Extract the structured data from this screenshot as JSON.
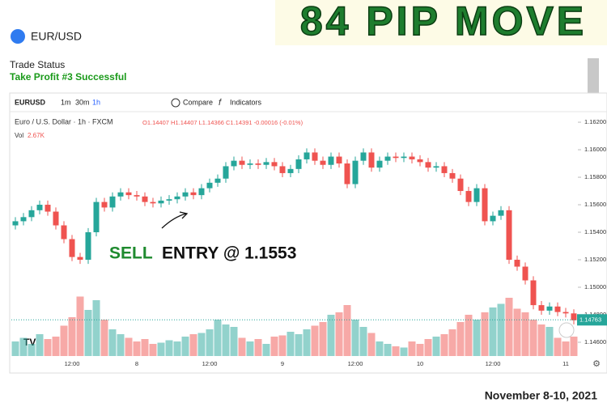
{
  "header": {
    "pair": "EUR/USD",
    "logo": "84 PIP MOVE"
  },
  "status": {
    "label": "Trade Status",
    "value": "Take Profit #3 Successful"
  },
  "toolbar": {
    "symbol": "EURUSD",
    "intervals": [
      "1m",
      "30m",
      "1h"
    ],
    "compare": "Compare",
    "indicators": "Indicators"
  },
  "chart_data": {
    "type": "candlestick",
    "title": "Euro / U.S. Dollar · 1h · FXCM",
    "ohlc_text": "O1.14407 H1.14407 L1.14366 C1.14391 -0.00016 (-0.01%)",
    "volume_label": "Vol",
    "volume_value": "2.67K",
    "up_color": "#26a69a",
    "down_color": "#ef5350",
    "categories": [
      null,
      null,
      null,
      null,
      null,
      null,
      null,
      "12:00",
      null,
      null,
      null,
      null,
      null,
      null,
      null,
      "8",
      null,
      null,
      null,
      null,
      null,
      null,
      null,
      null,
      "12:00",
      null,
      null,
      null,
      null,
      null,
      null,
      null,
      null,
      "9",
      null,
      null,
      null,
      null,
      null,
      null,
      null,
      null,
      "12:00",
      null,
      null,
      null,
      null,
      null,
      null,
      null,
      "10",
      null,
      null,
      null,
      null,
      null,
      null,
      null,
      null,
      "12:00",
      null,
      null,
      null,
      null,
      null,
      null,
      null,
      null,
      "11",
      null
    ],
    "open": [
      1.1545,
      1.1548,
      1.1551,
      1.1556,
      1.156,
      1.1555,
      1.1545,
      1.1535,
      1.1522,
      1.152,
      1.154,
      1.1562,
      1.1558,
      1.1566,
      1.1569,
      1.1567,
      1.1566,
      1.1562,
      1.1561,
      1.1563,
      1.1564,
      1.1566,
      1.1569,
      1.1567,
      1.1572,
      1.1576,
      1.1579,
      1.1588,
      1.1592,
      1.1589,
      1.159,
      1.1589,
      1.1591,
      1.1588,
      1.1583,
      1.1586,
      1.1593,
      1.1598,
      1.1592,
      1.1589,
      1.1595,
      1.159,
      1.1575,
      1.1592,
      1.1598,
      1.1587,
      1.1592,
      1.1595,
      1.1594,
      1.1595,
      1.1593,
      1.1591,
      1.1587,
      1.1588,
      1.1583,
      1.1579,
      1.157,
      1.1562,
      1.1572,
      1.1548,
      1.1552,
      1.1556,
      1.152,
      1.1515,
      1.1505,
      1.1487,
      1.1483,
      1.1486,
      1.1482,
      1.1481
    ],
    "high": [
      1.1551,
      1.1554,
      1.1559,
      1.1563,
      1.1563,
      1.1558,
      1.1548,
      1.1538,
      1.1525,
      1.1543,
      1.1565,
      1.1565,
      1.1569,
      1.1572,
      1.1572,
      1.157,
      1.1569,
      1.1565,
      1.1566,
      1.1567,
      1.1569,
      1.1572,
      1.1572,
      1.1575,
      1.1579,
      1.1582,
      1.1591,
      1.1595,
      1.1595,
      1.1593,
      1.1593,
      1.1594,
      1.1594,
      1.1591,
      1.1589,
      1.1596,
      1.1601,
      1.1601,
      1.1595,
      1.1598,
      1.1598,
      1.1593,
      1.1595,
      1.1601,
      1.1601,
      1.1595,
      1.1598,
      1.1598,
      1.1598,
      1.1598,
      1.1596,
      1.1594,
      1.1591,
      1.1591,
      1.1586,
      1.1582,
      1.1573,
      1.1575,
      1.1575,
      1.1555,
      1.1559,
      1.1559,
      1.1523,
      1.1518,
      1.1508,
      1.149,
      1.1489,
      1.1489,
      1.1485,
      1.1484
    ],
    "low": [
      1.1542,
      1.1545,
      1.1548,
      1.1553,
      1.1552,
      1.1542,
      1.1532,
      1.1519,
      1.1517,
      1.1517,
      1.1537,
      1.1555,
      1.1555,
      1.1563,
      1.1564,
      1.1563,
      1.1559,
      1.1558,
      1.1558,
      1.156,
      1.1561,
      1.1563,
      1.1564,
      1.1564,
      1.1569,
      1.1573,
      1.1576,
      1.1585,
      1.1586,
      1.1586,
      1.1586,
      1.1586,
      1.1585,
      1.158,
      1.158,
      1.1583,
      1.159,
      1.1589,
      1.1586,
      1.1586,
      1.1587,
      1.1572,
      1.1572,
      1.1589,
      1.1584,
      1.1584,
      1.1589,
      1.1591,
      1.1591,
      1.159,
      1.1588,
      1.1584,
      1.1584,
      1.158,
      1.1576,
      1.1567,
      1.1559,
      1.1559,
      1.1545,
      1.1545,
      1.1549,
      1.1517,
      1.1512,
      1.1502,
      1.1484,
      1.148,
      1.148,
      1.1479,
      1.1478,
      1.1473
    ],
    "close": [
      1.1548,
      1.1551,
      1.1556,
      1.156,
      1.1555,
      1.1545,
      1.1535,
      1.1522,
      1.152,
      1.154,
      1.1562,
      1.1558,
      1.1566,
      1.1569,
      1.1567,
      1.1566,
      1.1562,
      1.1561,
      1.1563,
      1.1564,
      1.1566,
      1.1569,
      1.1567,
      1.1572,
      1.1576,
      1.1579,
      1.1588,
      1.1592,
      1.1589,
      1.159,
      1.1589,
      1.1591,
      1.1588,
      1.1583,
      1.1586,
      1.1593,
      1.1598,
      1.1592,
      1.1589,
      1.1595,
      1.159,
      1.1575,
      1.1592,
      1.1598,
      1.1587,
      1.1592,
      1.1595,
      1.1594,
      1.1595,
      1.1593,
      1.1591,
      1.1587,
      1.1588,
      1.1583,
      1.1579,
      1.157,
      1.1562,
      1.1572,
      1.1548,
      1.1552,
      1.1556,
      1.152,
      1.1515,
      1.1505,
      1.1487,
      1.1483,
      1.1486,
      1.1482,
      1.1481,
      1.1476
    ],
    "volume": [
      1.2,
      1.5,
      1.0,
      1.8,
      1.4,
      1.6,
      2.5,
      3.2,
      4.9,
      3.8,
      4.6,
      3.0,
      2.2,
      1.8,
      1.5,
      1.2,
      1.4,
      1.0,
      1.1,
      1.3,
      1.2,
      1.6,
      1.8,
      1.9,
      2.2,
      3.0,
      2.6,
      2.4,
      1.5,
      1.2,
      1.4,
      1.0,
      1.6,
      1.7,
      2.0,
      1.8,
      2.2,
      2.5,
      2.8,
      3.4,
      3.6,
      4.2,
      3.0,
      2.4,
      1.9,
      1.2,
      1.0,
      0.8,
      0.7,
      1.2,
      1.0,
      1.4,
      1.6,
      1.8,
      2.2,
      2.8,
      3.4,
      3.0,
      3.6,
      4.0,
      4.3,
      4.8,
      3.9,
      3.6,
      3.0,
      2.6,
      2.4,
      1.5,
      1.2,
      1.6
    ],
    "volume_ylim": [
      0,
      20
    ],
    "ylim": [
      1.145,
      1.16265
    ],
    "yticks": [
      {
        "value": 1.162,
        "label": "1.16200"
      },
      {
        "value": 1.16,
        "label": "1.16000"
      },
      {
        "value": 1.158,
        "label": "1.15800"
      },
      {
        "value": 1.156,
        "label": "1.15600"
      },
      {
        "value": 1.154,
        "label": "1.15400"
      },
      {
        "value": 1.152,
        "label": "1.15200"
      },
      {
        "value": 1.15,
        "label": "1.15000"
      },
      {
        "value": 1.148,
        "label": "1.14800"
      },
      {
        "value": 1.146,
        "label": "1.14600"
      }
    ],
    "last_price": 1.14763
  },
  "annotation": {
    "sell": "SELL",
    "entry": "ENTRY @ 1.1553"
  },
  "footer": "November 8-10, 2021"
}
